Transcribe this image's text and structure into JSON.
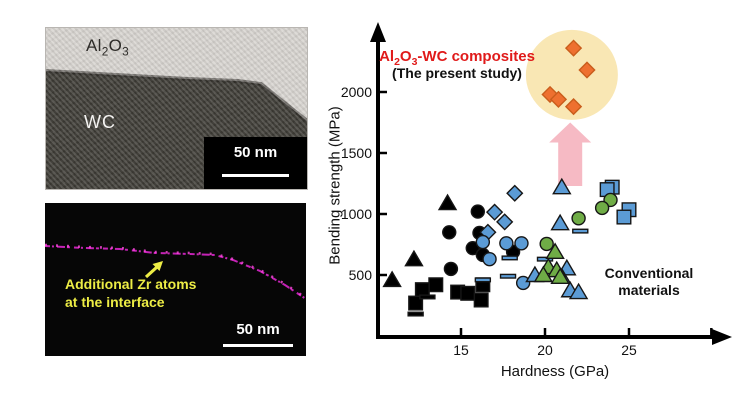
{
  "figure": {
    "micrograph_top": {
      "region_top_label": {
        "base": "Al",
        "sub_a": "2",
        "mid": "O",
        "sub_b": "3"
      },
      "region_bottom_label": "WC",
      "scalebar_label": "50 nm"
    },
    "micrograph_bottom": {
      "annotation_line1": "Additional Zr atoms",
      "annotation_line2": "at the interface",
      "scalebar_label": "50 nm"
    }
  },
  "colors": {
    "accent_red": "#e01a1a",
    "orange_fill": "#ee7030",
    "orange_stroke": "#c95d1c",
    "blue_fill": "#5b9bd5",
    "green_fill": "#6fac46",
    "black_fill": "#000000",
    "highlight_yellow": "#f9e7b4",
    "arrow_pink": "#f6bac4",
    "interface_magenta": "#d926c9",
    "annotation_yellow": "#eded45"
  },
  "chart_data": {
    "type": "scatter",
    "xlabel": "Hardness (GPa)",
    "ylabel": "Bending strength (MPa)",
    "xlim": [
      10,
      31
    ],
    "ylim": [
      0,
      2500
    ],
    "grid": false,
    "x_ticks": [
      15,
      20,
      25
    ],
    "x_ticks_unlabeled": [
      29.9
    ],
    "y_ticks": [
      500,
      1000,
      1500,
      2000
    ],
    "annotations": {
      "study_label": {
        "base": "Al",
        "sub_a": "2",
        "mid": "O",
        "sub_b": "3",
        "rest": "-WC composites"
      },
      "study_sublabel": "(The present study)",
      "conventional_line1": "Conventional",
      "conventional_line2": "materials"
    },
    "highlight": {
      "h": 21.6,
      "s": 2140,
      "radius_px": 46,
      "color": "#f9e7b4"
    },
    "emphasis_arrow": {
      "h": 21.5,
      "tip_s": 1750,
      "base_s": 1410,
      "color": "#f6bac4"
    },
    "series": [
      {
        "name": "conventional black triangles",
        "marker": "triangle",
        "fill": "#000000",
        "points": [
          [
            14.2,
            1090
          ],
          [
            12.2,
            630
          ],
          [
            10.9,
            460
          ]
        ]
      },
      {
        "name": "conventional black circles",
        "marker": "circle",
        "fill": "#000000",
        "points": [
          [
            16.0,
            1020
          ],
          [
            16.1,
            845
          ],
          [
            14.3,
            850
          ],
          [
            15.7,
            720
          ],
          [
            16.3,
            665
          ],
          [
            14.4,
            550
          ],
          [
            18.1,
            690
          ]
        ]
      },
      {
        "name": "conventional black squares",
        "marker": "square",
        "fill": "#000000",
        "points": [
          [
            13.5,
            420
          ],
          [
            12.7,
            380
          ],
          [
            14.8,
            360
          ],
          [
            12.3,
            270
          ],
          [
            16.3,
            420
          ],
          [
            15.4,
            350
          ],
          [
            16.2,
            295
          ]
        ]
      },
      {
        "name": "conventional black bars",
        "marker": "bar",
        "fill": "#000000",
        "points": [
          [
            13.0,
            320
          ],
          [
            12.3,
            180
          ]
        ]
      },
      {
        "name": "conventional blue diamonds",
        "marker": "diamond",
        "fill": "#5b9bd5",
        "points": [
          [
            18.2,
            1170
          ],
          [
            17.0,
            1015
          ],
          [
            17.6,
            935
          ],
          [
            16.6,
            850
          ]
        ]
      },
      {
        "name": "conventional blue circles",
        "marker": "circle",
        "fill": "#5b9bd5",
        "points": [
          [
            16.3,
            770
          ],
          [
            17.7,
            760
          ],
          [
            18.6,
            760
          ],
          [
            16.7,
            630
          ],
          [
            18.7,
            435
          ]
        ]
      },
      {
        "name": "conventional blue triangles",
        "marker": "triangle",
        "fill": "#5b9bd5",
        "points": [
          [
            21.0,
            1220
          ],
          [
            20.9,
            925
          ],
          [
            21.3,
            555
          ],
          [
            21.0,
            485
          ],
          [
            21.5,
            375
          ],
          [
            22.0,
            360
          ],
          [
            19.4,
            500
          ]
        ]
      },
      {
        "name": "conventional blue squares",
        "marker": "square",
        "fill": "#5b9bd5",
        "points": [
          [
            24.0,
            1220
          ],
          [
            23.7,
            1200
          ],
          [
            25.0,
            1035
          ],
          [
            24.7,
            975
          ]
        ]
      },
      {
        "name": "conventional blue bars",
        "marker": "bar",
        "fill": "#5b9bd5",
        "points": [
          [
            17.9,
            640
          ],
          [
            20.0,
            630
          ],
          [
            16.3,
            460
          ],
          [
            17.8,
            490
          ],
          [
            22.1,
            860
          ]
        ]
      },
      {
        "name": "conventional green circles",
        "marker": "circle",
        "fill": "#6fac46",
        "points": [
          [
            23.9,
            1115
          ],
          [
            23.4,
            1050
          ],
          [
            22.0,
            965
          ],
          [
            20.1,
            755
          ]
        ]
      },
      {
        "name": "conventional green triangles",
        "marker": "triangle",
        "fill": "#6fac46",
        "points": [
          [
            20.6,
            690
          ],
          [
            20.2,
            565
          ],
          [
            20.7,
            540
          ],
          [
            20.9,
            485
          ],
          [
            19.9,
            500
          ]
        ]
      },
      {
        "name": "Al2O3-WC composites (present study)",
        "marker": "diamond",
        "fill": "#ee7030",
        "stroke": "#c95d1c",
        "points": [
          [
            21.7,
            2360
          ],
          [
            22.5,
            2180
          ],
          [
            20.3,
            1980
          ],
          [
            20.8,
            1940
          ],
          [
            21.7,
            1880
          ]
        ]
      }
    ]
  }
}
